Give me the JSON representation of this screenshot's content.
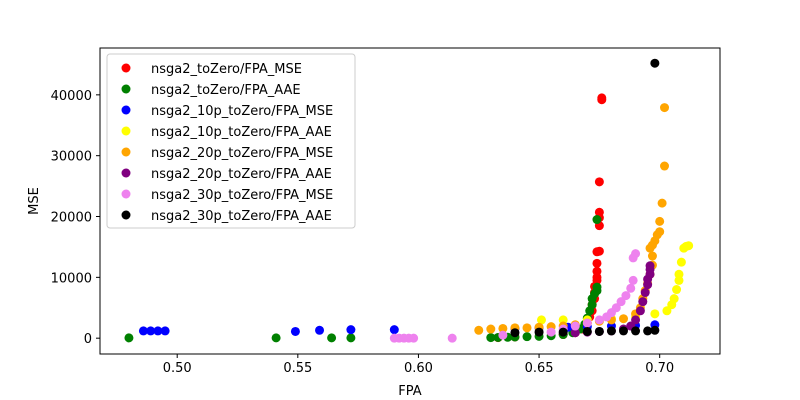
{
  "chart_data": {
    "type": "scatter",
    "title": "",
    "xlabel": "FPA",
    "ylabel": "MSE",
    "xlim": [
      0.468,
      0.725
    ],
    "ylim": [
      -2600,
      47700
    ],
    "xticks": [
      0.5,
      0.55,
      0.6,
      0.65,
      0.7
    ],
    "xtick_labels": [
      "0.50",
      "0.55",
      "0.60",
      "0.65",
      "0.70"
    ],
    "yticks": [
      0,
      10000,
      20000,
      30000,
      40000
    ],
    "ytick_labels": [
      "0",
      "10000",
      "20000",
      "30000",
      "40000"
    ],
    "grid": false,
    "legend_position": "upper-left",
    "series": [
      {
        "name": "nsga2_toZero/FPA_MSE",
        "color": "#ff0000",
        "points": [
          [
            0.633,
            100
          ],
          [
            0.64,
            200
          ],
          [
            0.66,
            600
          ],
          [
            0.665,
            900
          ],
          [
            0.668,
            1500
          ],
          [
            0.67,
            2500
          ],
          [
            0.671,
            3500
          ],
          [
            0.672,
            4500
          ],
          [
            0.672,
            5500
          ],
          [
            0.673,
            6500
          ],
          [
            0.673,
            7500
          ],
          [
            0.673,
            8500
          ],
          [
            0.674,
            9500
          ],
          [
            0.674,
            10000
          ],
          [
            0.674,
            11000
          ],
          [
            0.674,
            12300
          ],
          [
            0.674,
            14200
          ],
          [
            0.675,
            14300
          ],
          [
            0.675,
            18500
          ],
          [
            0.675,
            19800
          ],
          [
            0.675,
            20700
          ],
          [
            0.675,
            25700
          ],
          [
            0.676,
            39200
          ],
          [
            0.676,
            39500
          ]
        ]
      },
      {
        "name": "nsga2_toZero/FPA_AAE",
        "color": "#008000",
        "points": [
          [
            0.48,
            50
          ],
          [
            0.541,
            50
          ],
          [
            0.564,
            50
          ],
          [
            0.572,
            50
          ],
          [
            0.63,
            100
          ],
          [
            0.633,
            120
          ],
          [
            0.637,
            150
          ],
          [
            0.64,
            200
          ],
          [
            0.645,
            250
          ],
          [
            0.65,
            300
          ],
          [
            0.655,
            400
          ],
          [
            0.66,
            600
          ],
          [
            0.664,
            900
          ],
          [
            0.667,
            1500
          ],
          [
            0.669,
            2300
          ],
          [
            0.67,
            3300
          ],
          [
            0.671,
            4500
          ],
          [
            0.672,
            5500
          ],
          [
            0.672,
            6500
          ],
          [
            0.673,
            7300
          ],
          [
            0.674,
            7800
          ],
          [
            0.674,
            8400
          ],
          [
            0.674,
            19500
          ]
        ]
      },
      {
        "name": "nsga2_10p_toZero/FPA_MSE",
        "color": "#0000ff",
        "points": [
          [
            0.486,
            1200
          ],
          [
            0.489,
            1200
          ],
          [
            0.492,
            1200
          ],
          [
            0.495,
            1200
          ],
          [
            0.549,
            1100
          ],
          [
            0.559,
            1300
          ],
          [
            0.572,
            1400
          ],
          [
            0.59,
            1400
          ],
          [
            0.64,
            1600
          ],
          [
            0.65,
            1700
          ],
          [
            0.662,
            1800
          ],
          [
            0.67,
            1900
          ],
          [
            0.68,
            2000
          ],
          [
            0.69,
            2100
          ],
          [
            0.698,
            2200
          ]
        ]
      },
      {
        "name": "nsga2_10p_toZero/FPA_AAE",
        "color": "#ffff00",
        "points": [
          [
            0.651,
            3000
          ],
          [
            0.66,
            3000
          ],
          [
            0.67,
            3000
          ],
          [
            0.68,
            3200
          ],
          [
            0.69,
            3500
          ],
          [
            0.698,
            4000
          ],
          [
            0.703,
            4500
          ],
          [
            0.705,
            5500
          ],
          [
            0.706,
            6500
          ],
          [
            0.707,
            8000
          ],
          [
            0.708,
            9500
          ],
          [
            0.708,
            10500
          ],
          [
            0.709,
            12500
          ],
          [
            0.71,
            14800
          ],
          [
            0.711,
            15100
          ],
          [
            0.712,
            15200
          ]
        ]
      },
      {
        "name": "nsga2_20p_toZero/FPA_MSE",
        "color": "#ffa500",
        "points": [
          [
            0.625,
            1300
          ],
          [
            0.63,
            1500
          ],
          [
            0.635,
            1600
          ],
          [
            0.64,
            1700
          ],
          [
            0.645,
            1700
          ],
          [
            0.65,
            1800
          ],
          [
            0.655,
            1900
          ],
          [
            0.66,
            2000
          ],
          [
            0.665,
            2200
          ],
          [
            0.67,
            2500
          ],
          [
            0.675,
            2800
          ],
          [
            0.68,
            3000
          ],
          [
            0.685,
            3200
          ],
          [
            0.69,
            4000
          ],
          [
            0.692,
            5000
          ],
          [
            0.693,
            6500
          ],
          [
            0.694,
            7800
          ],
          [
            0.695,
            9000
          ],
          [
            0.696,
            10500
          ],
          [
            0.697,
            12000
          ],
          [
            0.697,
            13500
          ],
          [
            0.696,
            14800
          ],
          [
            0.697,
            15300
          ],
          [
            0.698,
            16000
          ],
          [
            0.699,
            17000
          ],
          [
            0.7,
            17500
          ],
          [
            0.7,
            19200
          ],
          [
            0.701,
            22200
          ],
          [
            0.702,
            28300
          ],
          [
            0.702,
            37900
          ]
        ]
      },
      {
        "name": "nsga2_20p_toZero/FPA_AAE",
        "color": "#800080",
        "points": [
          [
            0.665,
            900
          ],
          [
            0.67,
            1000
          ],
          [
            0.675,
            1100
          ],
          [
            0.68,
            1200
          ],
          [
            0.685,
            1500
          ],
          [
            0.688,
            2000
          ],
          [
            0.69,
            3000
          ],
          [
            0.692,
            4500
          ],
          [
            0.693,
            6000
          ],
          [
            0.694,
            7500
          ],
          [
            0.695,
            8800
          ],
          [
            0.695,
            9700
          ],
          [
            0.696,
            10500
          ],
          [
            0.696,
            11300
          ],
          [
            0.696,
            11900
          ]
        ]
      },
      {
        "name": "nsga2_30p_toZero/FPA_MSE",
        "color": "#ee82ee",
        "points": [
          [
            0.59,
            0
          ],
          [
            0.592,
            0
          ],
          [
            0.594,
            0
          ],
          [
            0.596,
            0
          ],
          [
            0.598,
            0
          ],
          [
            0.614,
            0
          ],
          [
            0.635,
            500
          ],
          [
            0.655,
            1000
          ],
          [
            0.66,
            1500
          ],
          [
            0.665,
            2000
          ],
          [
            0.67,
            2500
          ],
          [
            0.675,
            3000
          ],
          [
            0.678,
            3500
          ],
          [
            0.68,
            4200
          ],
          [
            0.682,
            5000
          ],
          [
            0.684,
            6000
          ],
          [
            0.686,
            7000
          ],
          [
            0.688,
            8200
          ],
          [
            0.689,
            9500
          ],
          [
            0.689,
            13200
          ],
          [
            0.69,
            13900
          ]
        ]
      },
      {
        "name": "nsga2_30p_toZero/FPA_AAE",
        "color": "#000000",
        "points": [
          [
            0.64,
            900
          ],
          [
            0.65,
            1000
          ],
          [
            0.66,
            1000
          ],
          [
            0.67,
            1100
          ],
          [
            0.675,
            1100
          ],
          [
            0.68,
            1200
          ],
          [
            0.685,
            1200
          ],
          [
            0.69,
            1200
          ],
          [
            0.695,
            1200
          ],
          [
            0.698,
            1300
          ],
          [
            0.698,
            45200
          ]
        ]
      }
    ]
  }
}
